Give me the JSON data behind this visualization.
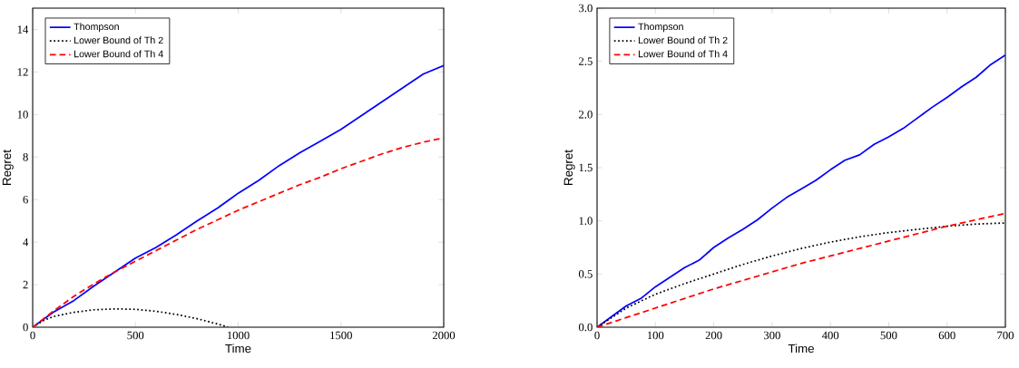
{
  "chart_data": [
    {
      "type": "line",
      "xlabel": "Time",
      "ylabel": "Regret",
      "xlim": [
        0,
        2000
      ],
      "ylim": [
        0,
        15
      ],
      "xticks": [
        0,
        500,
        1000,
        1500,
        2000
      ],
      "yticks": [
        0,
        2,
        4,
        6,
        8,
        10,
        12,
        14
      ],
      "legend": "top left",
      "grid": false,
      "series": [
        {
          "name": "Thompson",
          "color": "#0000ff",
          "line_style": "solid",
          "x": [
            0,
            100,
            200,
            300,
            400,
            500,
            600,
            700,
            800,
            900,
            1000,
            1100,
            1200,
            1300,
            1400,
            1500,
            1600,
            1700,
            1800,
            1900,
            2000
          ],
          "values": [
            0,
            0.7,
            1.25,
            1.95,
            2.6,
            3.25,
            3.75,
            4.35,
            5.0,
            5.6,
            6.3,
            6.9,
            7.6,
            8.2,
            8.75,
            9.3,
            9.95,
            10.6,
            11.25,
            11.9,
            12.3
          ]
        },
        {
          "name": "Lower Bound of Th 2",
          "color": "#000000",
          "line_style": "dotted",
          "x": [
            0,
            50,
            100,
            200,
            300,
            400,
            500,
            600,
            700,
            800,
            900,
            950
          ],
          "values": [
            0,
            0.3,
            0.5,
            0.7,
            0.82,
            0.86,
            0.84,
            0.75,
            0.6,
            0.4,
            0.15,
            0
          ]
        },
        {
          "name": "Lower Bound of Th 4",
          "color": "#ff0000",
          "line_style": "dashed",
          "x": [
            0,
            100,
            200,
            300,
            400,
            500,
            600,
            700,
            800,
            900,
            1000,
            1100,
            1200,
            1300,
            1400,
            1500,
            1600,
            1700,
            1800,
            1900,
            2000
          ],
          "values": [
            0,
            0.75,
            1.45,
            2.05,
            2.6,
            3.1,
            3.6,
            4.1,
            4.6,
            5.05,
            5.5,
            5.9,
            6.3,
            6.7,
            7.05,
            7.45,
            7.8,
            8.15,
            8.45,
            8.7,
            8.9
          ]
        }
      ]
    },
    {
      "type": "line",
      "xlabel": "Time",
      "ylabel": "Regret",
      "xlim": [
        0,
        700
      ],
      "ylim": [
        0,
        3
      ],
      "xticks": [
        0,
        100,
        200,
        300,
        400,
        500,
        600,
        700
      ],
      "yticks": [
        {
          "value": 0,
          "label": "0.0"
        },
        {
          "value": 0.5,
          "label": "0.5"
        },
        {
          "value": 1,
          "label": "1.0"
        },
        {
          "value": 1.5,
          "label": "1.5"
        },
        {
          "value": 2,
          "label": "2.0"
        },
        {
          "value": 2.5,
          "label": "2.5"
        },
        {
          "value": 3,
          "label": "3.0"
        }
      ],
      "legend": "top left",
      "grid": false,
      "series": [
        {
          "name": "Thompson",
          "color": "#0000ff",
          "line_style": "solid",
          "x": [
            0,
            25,
            50,
            75,
            100,
            125,
            150,
            175,
            200,
            225,
            250,
            275,
            300,
            325,
            350,
            375,
            400,
            425,
            450,
            475,
            500,
            525,
            550,
            575,
            600,
            625,
            650,
            675,
            700
          ],
          "values": [
            0,
            0.1,
            0.2,
            0.27,
            0.38,
            0.47,
            0.56,
            0.63,
            0.75,
            0.84,
            0.92,
            1.01,
            1.12,
            1.22,
            1.3,
            1.38,
            1.48,
            1.57,
            1.62,
            1.72,
            1.79,
            1.87,
            1.97,
            2.07,
            2.16,
            2.26,
            2.35,
            2.47,
            2.56
          ]
        },
        {
          "name": "Lower Bound of Th 2",
          "color": "#000000",
          "line_style": "dotted",
          "x": [
            0,
            50,
            100,
            150,
            200,
            250,
            300,
            350,
            400,
            450,
            500,
            550,
            600,
            650,
            700
          ],
          "values": [
            0,
            0.18,
            0.31,
            0.41,
            0.5,
            0.59,
            0.67,
            0.74,
            0.8,
            0.85,
            0.89,
            0.92,
            0.95,
            0.97,
            0.98
          ]
        },
        {
          "name": "Lower Bound of Th 4",
          "color": "#ff0000",
          "line_style": "dashed",
          "x": [
            0,
            50,
            100,
            150,
            200,
            250,
            300,
            350,
            400,
            450,
            500,
            550,
            600,
            650,
            700
          ],
          "values": [
            0,
            0.09,
            0.18,
            0.27,
            0.36,
            0.44,
            0.52,
            0.6,
            0.67,
            0.74,
            0.81,
            0.88,
            0.95,
            1.01,
            1.07
          ]
        }
      ]
    }
  ]
}
